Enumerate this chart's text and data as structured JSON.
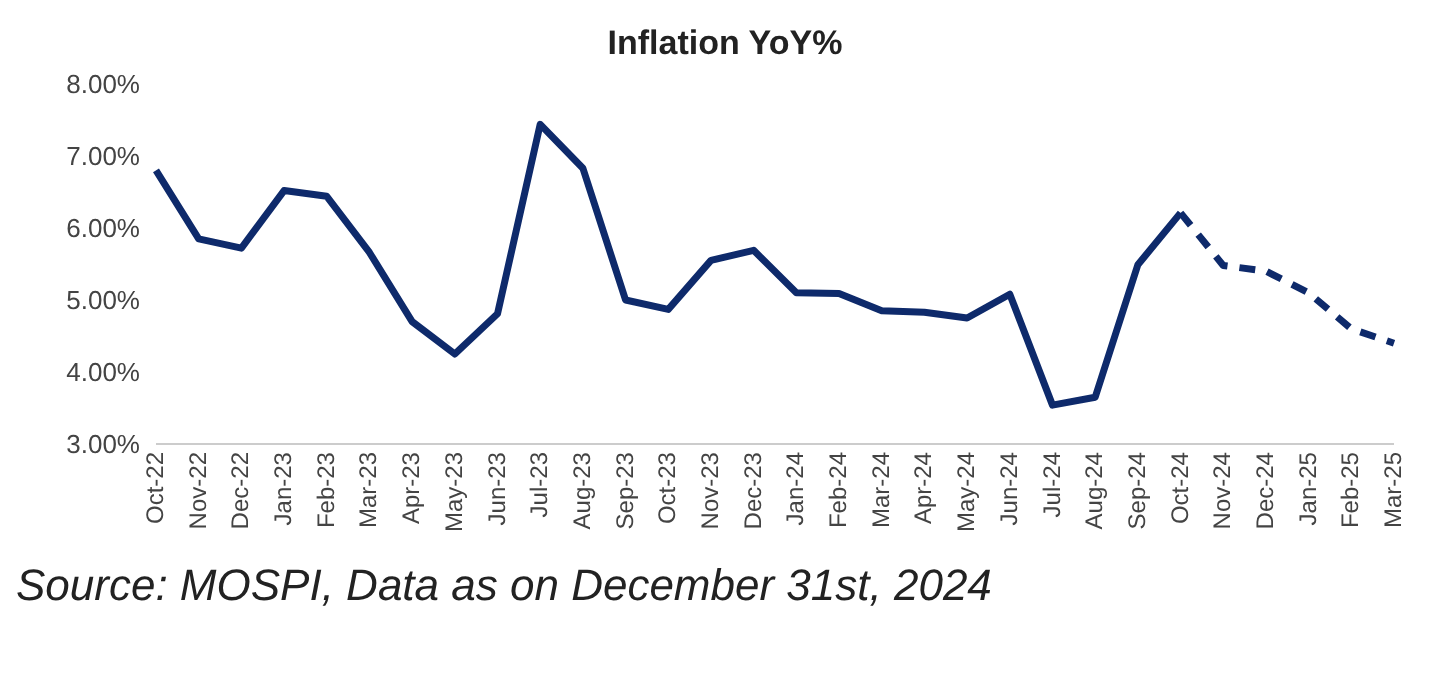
{
  "chart_data": {
    "type": "line",
    "title": "Inflation YoY%",
    "categories": [
      "Oct-22",
      "Nov-22",
      "Dec-22",
      "Jan-23",
      "Feb-23",
      "Mar-23",
      "Apr-23",
      "May-23",
      "Jun-23",
      "Jul-23",
      "Aug-23",
      "Sep-23",
      "Oct-23",
      "Nov-23",
      "Dec-23",
      "Jan-24",
      "Feb-24",
      "Mar-24",
      "Apr-24",
      "May-24",
      "Jun-24",
      "Jul-24",
      "Aug-24",
      "Sep-24",
      "Oct-24",
      "Nov-24",
      "Dec-24",
      "Jan-25",
      "Feb-25",
      "Mar-25"
    ],
    "series": [
      {
        "color": "#0e2a6b",
        "line_style": "solid",
        "values": [
          6.8,
          5.85,
          5.72,
          6.52,
          6.44,
          5.66,
          4.7,
          4.25,
          4.81,
          7.44,
          6.83,
          5.0,
          4.87,
          5.55,
          5.69,
          5.1,
          5.09,
          4.85,
          4.83,
          4.75,
          5.08,
          3.54,
          3.65,
          5.49,
          6.21,
          null,
          null,
          null,
          null,
          null
        ]
      },
      {
        "color": "#0e2a6b",
        "line_style": "dashed",
        "values": [
          null,
          null,
          null,
          null,
          null,
          null,
          null,
          null,
          null,
          null,
          null,
          null,
          null,
          null,
          null,
          null,
          null,
          null,
          null,
          null,
          null,
          null,
          null,
          null,
          6.21,
          5.48,
          5.4,
          5.1,
          4.6,
          4.4
        ]
      }
    ],
    "ylim": [
      3,
      8
    ],
    "yticks": [
      {
        "value": 3,
        "label": "3.00%"
      },
      {
        "value": 4,
        "label": "4.00%"
      },
      {
        "value": 5,
        "label": "5.00%"
      },
      {
        "value": 6,
        "label": "6.00%"
      },
      {
        "value": 7,
        "label": "7.00%"
      },
      {
        "value": 8,
        "label": "8.00%"
      }
    ],
    "grid": false,
    "legend": false,
    "marker": "none",
    "annotations": [
      "Source: MOSPI, Data as on December 31st, 2024"
    ]
  }
}
